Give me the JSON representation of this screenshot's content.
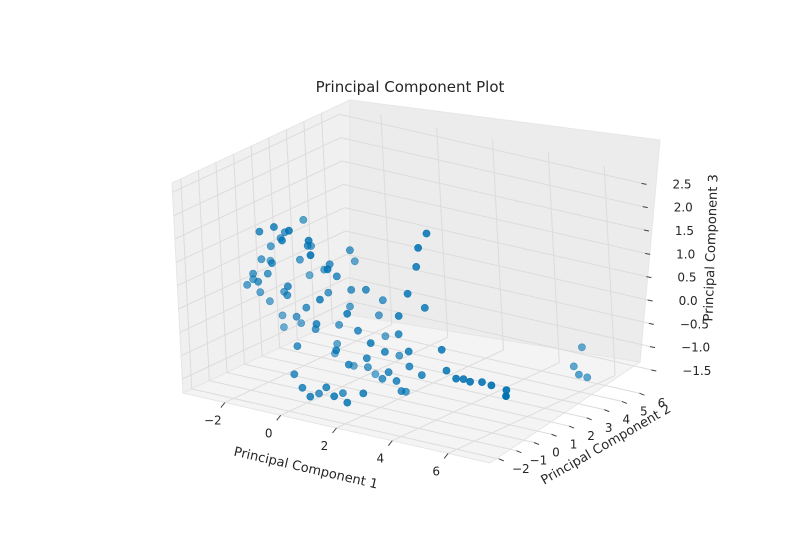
{
  "chart_data": {
    "type": "scatter3d",
    "title": "Principal Component Plot",
    "xlabel": "Principal Component 1",
    "ylabel": "Principal Component 2",
    "zlabel": "Principal Component 3",
    "xlim": [
      -3.5,
      7.5
    ],
    "ylim": [
      -2.5,
      7
    ],
    "zlim": [
      -1.8,
      2.7
    ],
    "xticks": [
      -2,
      0,
      2,
      4,
      6
    ],
    "yticks": [
      -2,
      -1,
      0,
      1,
      2,
      3,
      4,
      5,
      6
    ],
    "zticks": [
      -1.5,
      -1.0,
      -0.5,
      0.0,
      0.5,
      1.0,
      1.5,
      2.0,
      2.5
    ],
    "grid": true,
    "point_color": "#0072b2",
    "points": [
      [
        -2.6,
        0.0,
        0.2
      ],
      [
        -2.5,
        0.2,
        0.3
      ],
      [
        -2.3,
        -0.1,
        0.5
      ],
      [
        -2.4,
        0.4,
        0.0
      ],
      [
        -2.1,
        0.1,
        0.8
      ],
      [
        -2.0,
        -0.3,
        0.4
      ],
      [
        -2.2,
        0.6,
        -0.2
      ],
      [
        -1.8,
        0.2,
        1.1
      ],
      [
        -1.7,
        -0.2,
        0.6
      ],
      [
        -1.9,
        0.8,
        -0.5
      ],
      [
        -1.5,
        0.3,
        1.3
      ],
      [
        -1.4,
        -0.4,
        0.9
      ],
      [
        -1.6,
        0.5,
        0.1
      ],
      [
        -1.2,
        0.1,
        1.5
      ],
      [
        -1.1,
        -0.1,
        0.2
      ],
      [
        -1.3,
        0.9,
        -0.6
      ],
      [
        -0.9,
        0.4,
        0.9
      ],
      [
        -0.8,
        -0.5,
        0.5
      ],
      [
        -1.0,
        0.2,
        -0.3
      ],
      [
        -0.6,
        0.6,
        1.2
      ],
      [
        -0.5,
        0.0,
        0.0
      ],
      [
        -0.7,
        -0.3,
        -0.8
      ],
      [
        -0.3,
        0.8,
        0.7
      ],
      [
        -0.2,
        -0.2,
        1.4
      ],
      [
        -0.4,
        0.3,
        -0.5
      ],
      [
        0.0,
        0.5,
        0.3
      ],
      [
        0.1,
        -0.4,
        -0.2
      ],
      [
        -0.1,
        1.0,
        -0.9
      ],
      [
        0.3,
        0.2,
        1.0
      ],
      [
        0.4,
        -0.6,
        0.4
      ],
      [
        0.2,
        0.7,
        -0.4
      ],
      [
        0.6,
        0.1,
        0.8
      ],
      [
        0.7,
        -0.3,
        -0.7
      ],
      [
        0.5,
        0.9,
        0.0
      ],
      [
        0.9,
        0.4,
        0.5
      ],
      [
        1.0,
        -0.1,
        -1.0
      ],
      [
        0.8,
        0.6,
        1.3
      ],
      [
        1.2,
        0.2,
        -0.3
      ],
      [
        1.3,
        -0.5,
        0.2
      ],
      [
        1.1,
        0.8,
        -1.2
      ],
      [
        1.5,
        0.3,
        0.6
      ],
      [
        1.6,
        0.0,
        -0.8
      ],
      [
        1.4,
        1.1,
        -0.1
      ],
      [
        1.8,
        0.5,
        -1.3
      ],
      [
        1.9,
        -0.2,
        -0.4
      ],
      [
        1.7,
        0.9,
        0.3
      ],
      [
        2.1,
        0.4,
        -1.1
      ],
      [
        2.2,
        0.1,
        -0.6
      ],
      [
        2.0,
        1.2,
        -0.9
      ],
      [
        2.4,
        0.6,
        -1.5
      ],
      [
        2.5,
        0.2,
        -1.2
      ],
      [
        2.3,
        1.0,
        -1.6
      ],
      [
        -1.0,
        -0.8,
        1.8
      ],
      [
        -0.6,
        -1.0,
        1.6
      ],
      [
        -0.2,
        -1.2,
        1.9
      ],
      [
        0.3,
        -0.9,
        1.7
      ],
      [
        0.6,
        -1.3,
        1.5
      ],
      [
        -1.6,
        -0.7,
        1.6
      ],
      [
        1.0,
        -1.0,
        1.2
      ],
      [
        -0.4,
        1.3,
        -1.2
      ],
      [
        0.2,
        1.4,
        -1.4
      ],
      [
        0.9,
        1.5,
        -1.5
      ],
      [
        -2.0,
        1.0,
        -0.8
      ],
      [
        -2.3,
        0.9,
        0.6
      ],
      [
        -1.1,
        1.2,
        0.4
      ],
      [
        0.5,
        1.3,
        0.9
      ],
      [
        1.4,
        1.4,
        -0.6
      ],
      [
        -0.9,
        0.7,
        1.7
      ],
      [
        2.6,
        0.3,
        -0.2
      ],
      [
        2.8,
        0.5,
        -0.9
      ],
      [
        3.0,
        0.2,
        -0.5
      ],
      [
        3.3,
        0.4,
        -1.0
      ],
      [
        2.9,
        -0.1,
        0.3
      ],
      [
        3.2,
        0.0,
        0.8
      ],
      [
        3.5,
        0.1,
        1.4
      ],
      [
        3.8,
        -0.2,
        1.9
      ],
      [
        4.0,
        0.0,
        2.2
      ],
      [
        3.6,
        0.3,
        0.5
      ],
      [
        4.2,
        0.2,
        -0.3
      ],
      [
        4.4,
        0.1,
        -0.7
      ],
      [
        4.8,
        0.0,
        -0.8
      ],
      [
        5.0,
        0.1,
        -0.8
      ],
      [
        5.3,
        0.0,
        -0.8
      ],
      [
        5.6,
        0.2,
        -0.8
      ],
      [
        6.0,
        0.1,
        -0.8
      ],
      [
        6.6,
        0.0,
        -0.8
      ],
      [
        6.9,
        -0.5,
        -0.8
      ],
      [
        7.0,
        3.2,
        -0.8
      ],
      [
        7.2,
        3.4,
        -0.4
      ],
      [
        7.3,
        3.0,
        -0.9
      ],
      [
        7.4,
        3.3,
        -1.0
      ],
      [
        -0.4,
        -0.6,
        -1.6
      ],
      [
        0.0,
        -0.8,
        -1.7
      ],
      [
        0.4,
        -0.5,
        -1.5
      ],
      [
        -0.8,
        -0.4,
        -1.4
      ],
      [
        0.8,
        -0.7,
        -1.6
      ],
      [
        1.2,
        -0.6,
        -1.7
      ],
      [
        1.6,
        -0.3,
        -1.5
      ],
      [
        -0.2,
        0.0,
        -1.8
      ],
      [
        0.6,
        0.1,
        -1.7
      ]
    ]
  }
}
